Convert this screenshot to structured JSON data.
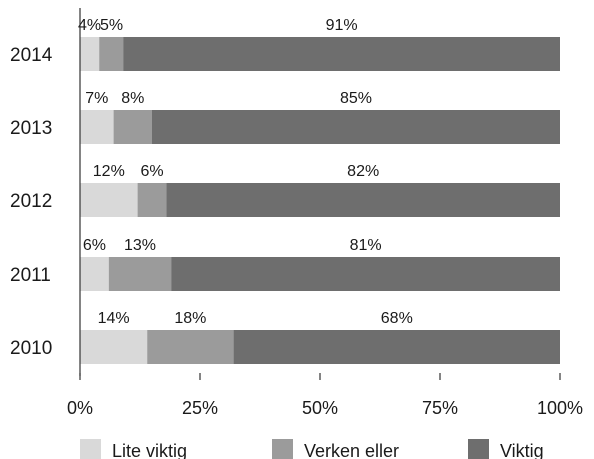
{
  "chart_data": {
    "type": "bar",
    "orientation": "horizontal",
    "stacked": true,
    "categories": [
      "2014",
      "2013",
      "2012",
      "2011",
      "2010"
    ],
    "series": [
      {
        "name": "Lite viktig",
        "values": [
          4,
          7,
          12,
          6,
          14
        ],
        "labels": [
          "4%",
          "7%",
          "12%",
          "6%",
          "14%"
        ],
        "color": "#d9d9d9"
      },
      {
        "name": "Verken eller",
        "values": [
          5,
          8,
          6,
          13,
          18
        ],
        "labels": [
          "5%",
          "8%",
          "6%",
          "13%",
          "18%"
        ],
        "color": "#9b9b9b"
      },
      {
        "name": "Viktig",
        "values": [
          91,
          85,
          82,
          81,
          68
        ],
        "labels": [
          "91%",
          "85%",
          "82%",
          "81%",
          "68%"
        ],
        "color": "#6e6e6e"
      }
    ],
    "xlim": [
      0,
      100
    ],
    "xticks": [
      0,
      25,
      50,
      75,
      100
    ],
    "xtick_labels": [
      "0%",
      "25%",
      "50%",
      "75%",
      "100%"
    ],
    "grid": false,
    "legend_position": "bottom"
  }
}
